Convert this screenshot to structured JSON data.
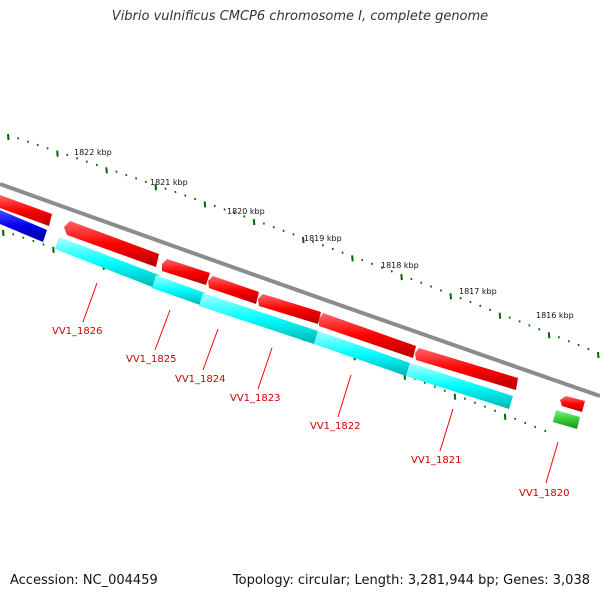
{
  "title": "Vibrio vulnificus CMCP6 chromosome I, complete genome",
  "footer": {
    "accession": "Accession: NC_004459",
    "summary": "Topology: circular; Length: 3,281,944 bp; Genes: 3,038"
  },
  "scale": {
    "unit": "kbp",
    "labels": [
      "1822 kbp",
      "1821 kbp",
      "1820 kbp",
      "1819 kbp",
      "1818 kbp",
      "1817 kbp",
      "1816 kbp"
    ]
  },
  "genes": [
    {
      "id": "g1826",
      "label": "VV1_1826",
      "cds_color": "#ff0000",
      "gene_color": "#00ffff"
    },
    {
      "id": "g1825",
      "label": "VV1_1825",
      "cds_color": "#ff0000",
      "gene_color": "#00ffff"
    },
    {
      "id": "g1824",
      "label": "VV1_1824",
      "cds_color": "#ff0000",
      "gene_color": "#00ffff"
    },
    {
      "id": "g1823",
      "label": "VV1_1823",
      "cds_color": "#ff0000",
      "gene_color": "#00ffff"
    },
    {
      "id": "g1822",
      "label": "VV1_1822",
      "cds_color": "#ff0000",
      "gene_color": "#00ffff"
    },
    {
      "id": "g1821",
      "label": "VV1_1821",
      "cds_color": "#ff0000",
      "gene_color": "#00ffff"
    },
    {
      "id": "g1820",
      "label": "VV1_1820",
      "cds_color": "#ff0000",
      "gene_color": "#33cc33"
    }
  ],
  "colors": {
    "backbone": "#8c8c8c",
    "tick": "#006600",
    "label": "#cc0000",
    "cds": "#ff0000",
    "gene": "#00ffff",
    "other_feature": "#0000ee",
    "rna": "#33cc33"
  }
}
